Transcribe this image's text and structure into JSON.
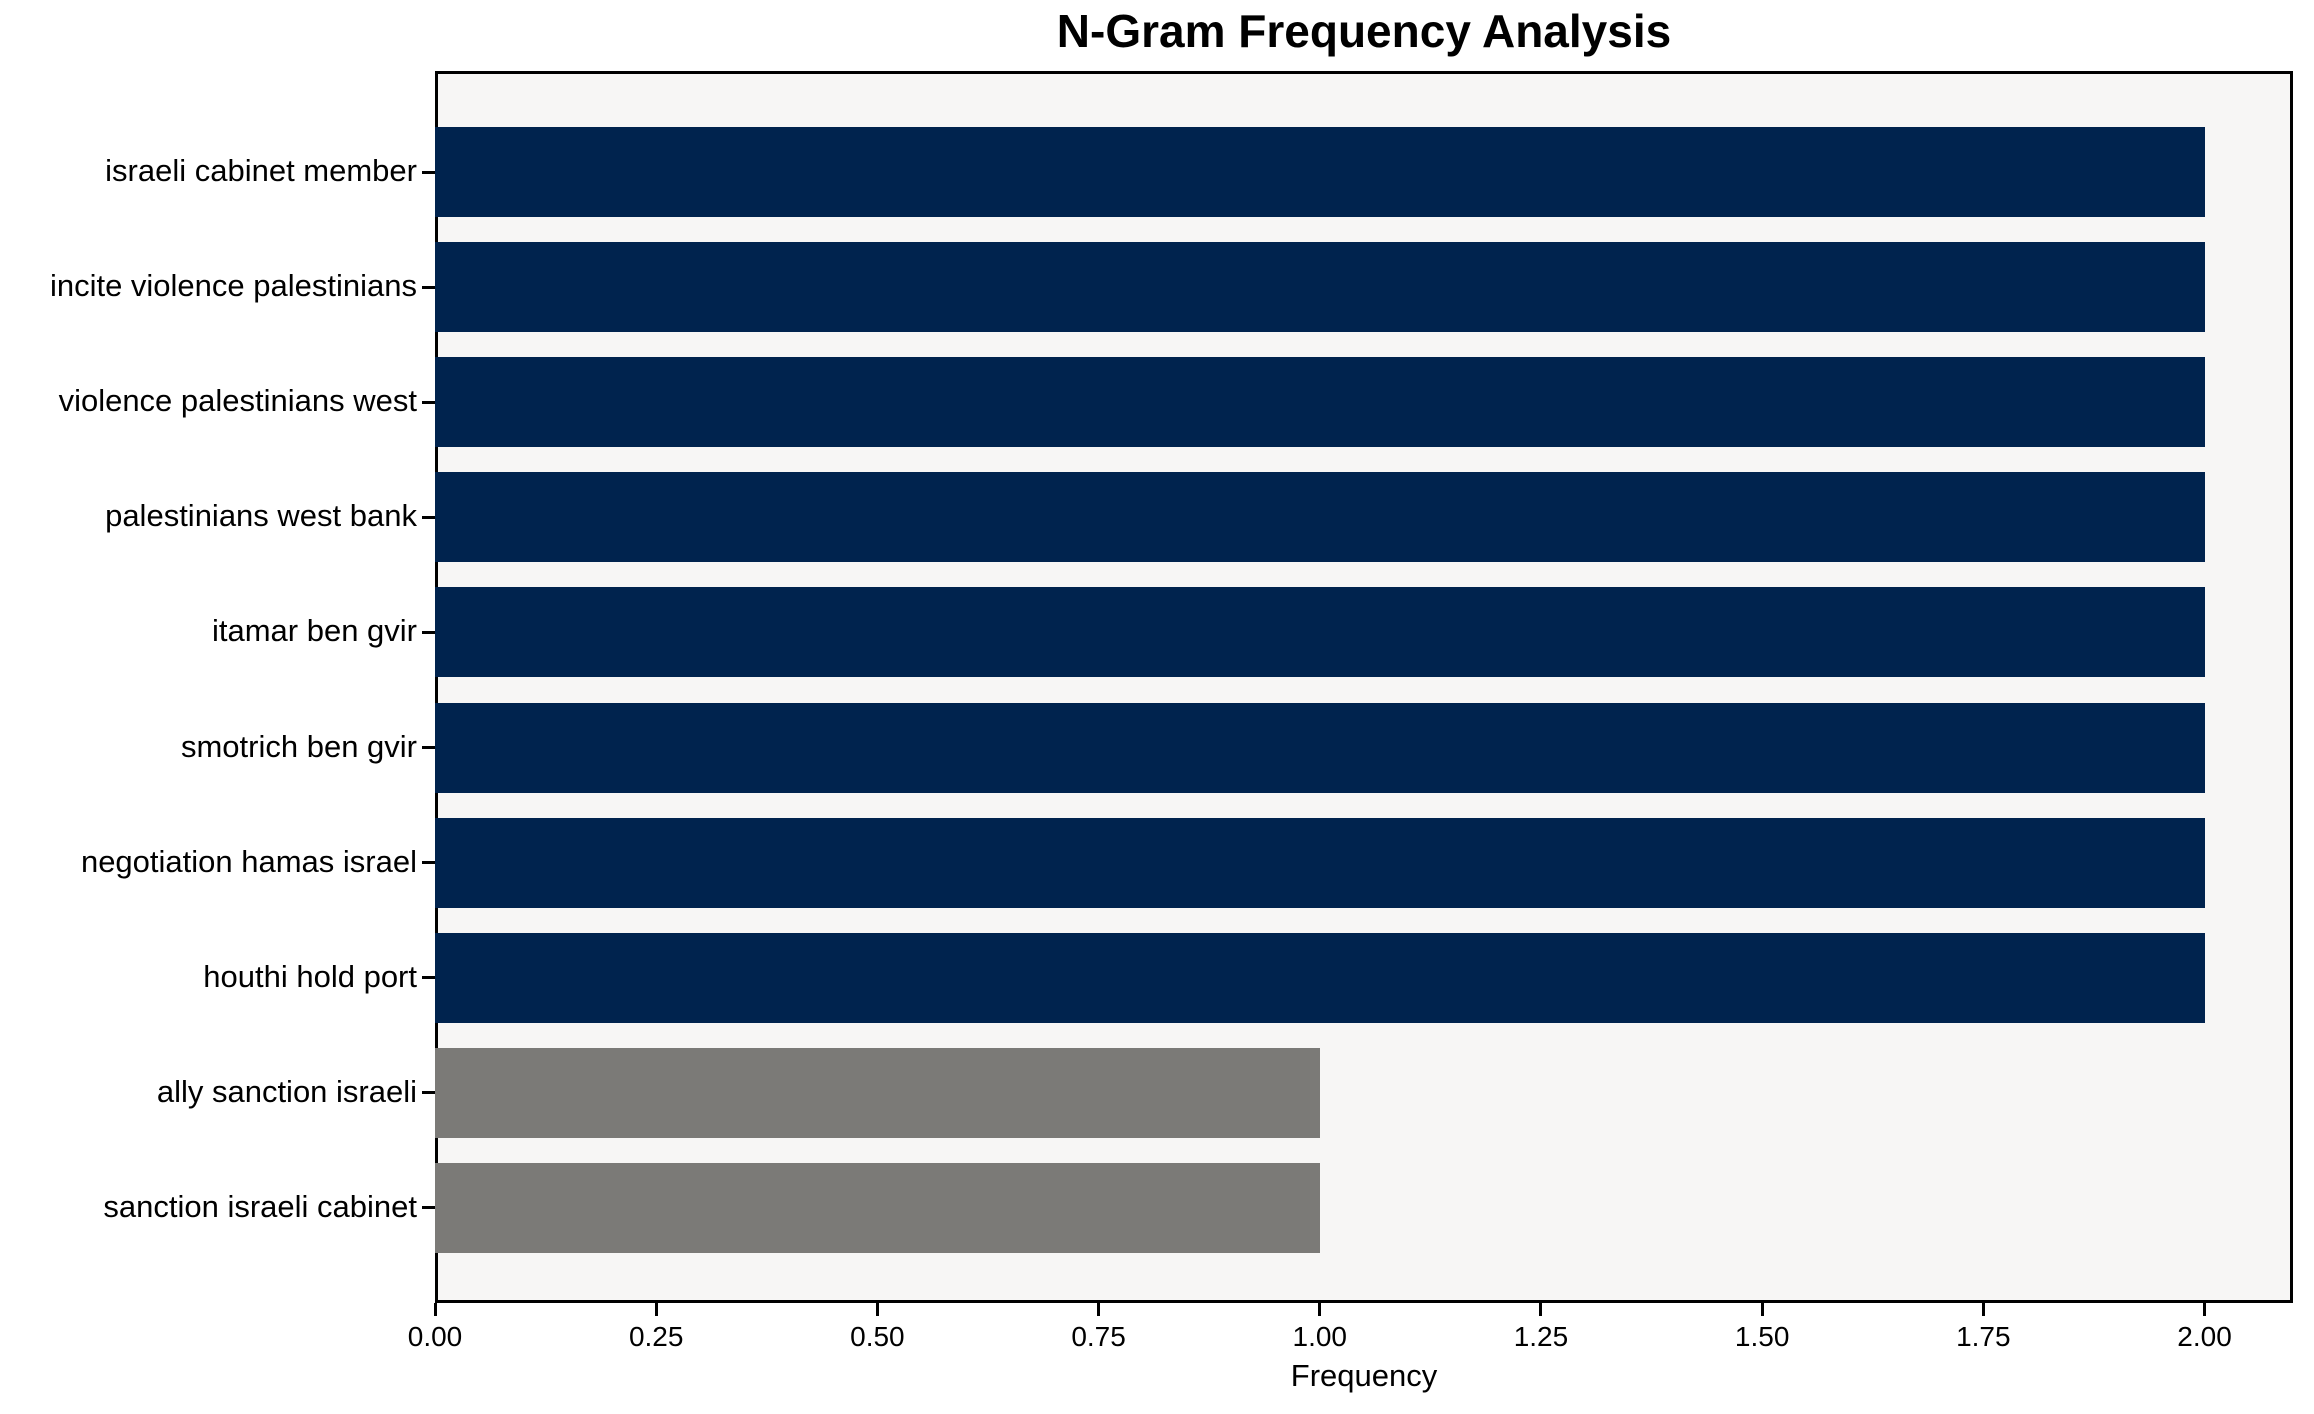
{
  "chart_data": {
    "type": "bar",
    "orientation": "horizontal",
    "title": "N-Gram Frequency Analysis",
    "xlabel": "Frequency",
    "ylabel": "",
    "categories": [
      "israeli cabinet member",
      "incite violence palestinians",
      "violence palestinians west",
      "palestinians west bank",
      "itamar ben gvir",
      "smotrich ben gvir",
      "negotiation hamas israel",
      "houthi hold port",
      "ally sanction israeli",
      "sanction israeli cabinet"
    ],
    "values": [
      2,
      2,
      2,
      2,
      2,
      2,
      2,
      2,
      1,
      1
    ],
    "bar_colors": [
      "#00234e",
      "#00234e",
      "#00234e",
      "#00234e",
      "#00234e",
      "#00234e",
      "#00234e",
      "#00234e",
      "#7b7a77",
      "#7b7a77"
    ],
    "xlim": [
      0,
      2.1
    ],
    "xticks": [
      0,
      0.25,
      0.5,
      0.75,
      1.0,
      1.25,
      1.5,
      1.75,
      2.0
    ],
    "xtick_labels": [
      "0.00",
      "0.25",
      "0.50",
      "0.75",
      "1.00",
      "1.25",
      "1.50",
      "1.75",
      "2.00"
    ],
    "grid": false,
    "legend": null,
    "colors": {
      "plot_background": "#f7f6f5",
      "figure_background": "#ffffff",
      "axis": "#000000",
      "highlight_bar": "#00234e",
      "muted_bar": "#7b7a77"
    }
  }
}
